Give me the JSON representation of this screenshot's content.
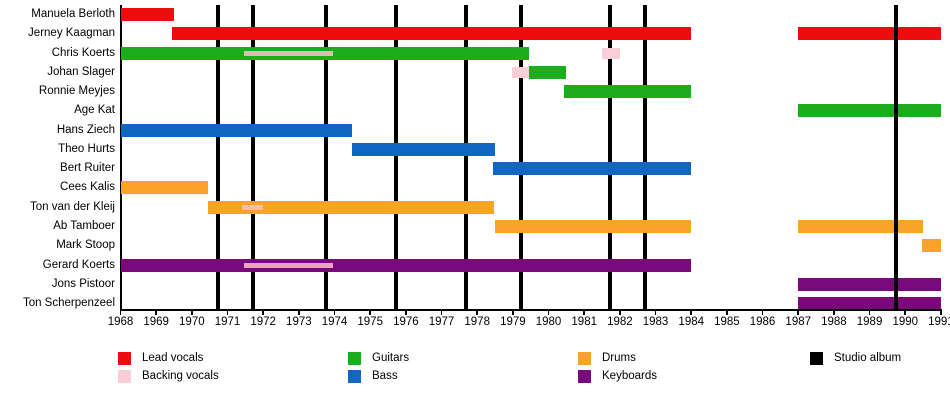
{
  "chart_data": {
    "type": "timeline",
    "title": "",
    "description": "Band line-up timeline: colored bars show each member's tenure by role; black vertical lines mark studio albums",
    "axis": {
      "start": 1968,
      "end": 1991,
      "tick_labels": [
        "1968",
        "1969",
        "1970",
        "1971",
        "1972",
        "1973",
        "1974",
        "1975",
        "1976",
        "1977",
        "1978",
        "1979",
        "1980",
        "1981",
        "1982",
        "1983",
        "1984",
        "1985",
        "1986",
        "1987",
        "1988",
        "1989",
        "1990",
        "1991"
      ]
    },
    "colors": {
      "lead_vocals": "#EC0D0E",
      "backing_vocals": "#F8CFD8",
      "backing_overlay": "rgba(255,192,203,0.85)",
      "guitars": "#1CAC1C",
      "bass": "#1166C2",
      "drums": "#F8A42B",
      "keyboards": "#7A097C",
      "studio_album": "#000000"
    },
    "members": [
      {
        "name": "Manuela Berloth",
        "bars": [
          {
            "role": "lead_vocals",
            "start": 1968,
            "end": 1969.5
          }
        ]
      },
      {
        "name": "Jerney Kaagman",
        "bars": [
          {
            "role": "lead_vocals",
            "start": 1969.45,
            "end": 1984
          },
          {
            "role": "lead_vocals",
            "start": 1987,
            "end": 1991
          }
        ]
      },
      {
        "name": "Chris Koerts",
        "bars": [
          {
            "role": "guitars",
            "start": 1968,
            "end": 1979.46
          },
          {
            "role": "backing_vocals",
            "start": 1981.5,
            "end": 1982
          }
        ],
        "overlays": [
          {
            "role": "backing_vocals",
            "start": 1971.45,
            "end": 1973.95
          }
        ]
      },
      {
        "name": "Johan Slager",
        "bars": [
          {
            "role": "backing_vocals",
            "start": 1978.97,
            "end": 1979.46
          },
          {
            "role": "guitars",
            "start": 1979.46,
            "end": 1980.49
          }
        ]
      },
      {
        "name": "Ronnie Meyjes",
        "bars": [
          {
            "role": "guitars",
            "start": 1980.44,
            "end": 1984
          }
        ]
      },
      {
        "name": "Age Kat",
        "bars": [
          {
            "role": "guitars",
            "start": 1987,
            "end": 1991
          }
        ]
      },
      {
        "name": "Hans Ziech",
        "bars": [
          {
            "role": "bass",
            "start": 1968,
            "end": 1974.49
          }
        ]
      },
      {
        "name": "Theo Hurts",
        "bars": [
          {
            "role": "bass",
            "start": 1974.49,
            "end": 1978.49
          }
        ]
      },
      {
        "name": "Bert Ruiter",
        "bars": [
          {
            "role": "bass",
            "start": 1978.45,
            "end": 1984
          }
        ]
      },
      {
        "name": "Cees Kalis",
        "bars": [
          {
            "role": "drums",
            "start": 1968,
            "end": 1970.45
          }
        ]
      },
      {
        "name": "Ton van der Kleij",
        "bars": [
          {
            "role": "drums",
            "start": 1970.45,
            "end": 1978.47
          }
        ],
        "overlays": [
          {
            "role": "backing_vocals",
            "start": 1971.4,
            "end": 1972
          }
        ]
      },
      {
        "name": "Ab Tamboer",
        "bars": [
          {
            "role": "drums",
            "start": 1978.5,
            "end": 1984
          },
          {
            "role": "drums",
            "start": 1987,
            "end": 1990.49
          }
        ]
      },
      {
        "name": "Mark Stoop",
        "bars": [
          {
            "role": "drums",
            "start": 1990.46,
            "end": 1991
          }
        ]
      },
      {
        "name": "Gerard Koerts",
        "bars": [
          {
            "role": "keyboards",
            "start": 1968,
            "end": 1984
          }
        ],
        "overlays": [
          {
            "role": "backing_vocals",
            "start": 1971.45,
            "end": 1973.95
          }
        ]
      },
      {
        "name": "Jons Pistoor",
        "bars": [
          {
            "role": "keyboards",
            "start": 1987,
            "end": 1991
          }
        ]
      },
      {
        "name": "Ton Scherpenzeel",
        "bars": [
          {
            "role": "keyboards",
            "start": 1987,
            "end": 1991
          }
        ]
      }
    ],
    "studio_albums": [
      {
        "year": 1970.72,
        "layer": "back"
      },
      {
        "year": 1971.71,
        "layer": "back"
      },
      {
        "year": 1973.75,
        "layer": "back"
      },
      {
        "year": 1975.71,
        "layer": "back"
      },
      {
        "year": 1977.7,
        "layer": "back"
      },
      {
        "year": 1979.22,
        "layer": "back"
      },
      {
        "year": 1981.72,
        "layer": "back"
      },
      {
        "year": 1982.7,
        "layer": "back"
      },
      {
        "year": 1989.74,
        "layer": "front"
      }
    ],
    "legend": [
      {
        "label": "Lead vocals",
        "role": "lead_vocals",
        "col": 0,
        "row": 0
      },
      {
        "label": "Backing vocals",
        "role": "backing_vocals",
        "col": 0,
        "row": 1
      },
      {
        "label": "Guitars",
        "role": "guitars",
        "col": 1,
        "row": 0
      },
      {
        "label": "Bass",
        "role": "bass",
        "col": 1,
        "row": 1
      },
      {
        "label": "Drums",
        "role": "drums",
        "col": 2,
        "row": 0
      },
      {
        "label": "Keyboards",
        "role": "keyboards",
        "col": 2,
        "row": 1
      },
      {
        "label": "Studio album",
        "role": "studio_album",
        "col": 3,
        "row": 0
      }
    ]
  }
}
